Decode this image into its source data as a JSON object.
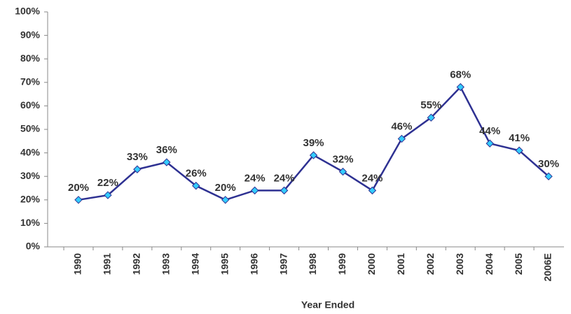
{
  "chart_data": {
    "type": "line",
    "x_label": "Year Ended",
    "categories": [
      "1990",
      "1991",
      "1992",
      "1993",
      "1994",
      "1995",
      "1996",
      "1997",
      "1998",
      "1999",
      "2000",
      "2001",
      "2002",
      "2003",
      "2004",
      "2005",
      "2006E"
    ],
    "series": [
      {
        "name": null,
        "color": "#2e3192",
        "marker_color": "#33ccff",
        "values": [
          20,
          22,
          33,
          36,
          26,
          20,
          24,
          24,
          39,
          32,
          24,
          46,
          55,
          68,
          44,
          41,
          30
        ],
        "value_labels": [
          "20%",
          "22%",
          "33%",
          "36%",
          "26%",
          "20%",
          "24%",
          "24%",
          "39%",
          "32%",
          "24%",
          "46%",
          "55%",
          "68%",
          "44%",
          "41%",
          "30%"
        ]
      }
    ],
    "ylim": [
      0,
      100
    ],
    "yticks": [
      {
        "value": 0,
        "label": "0%"
      },
      {
        "value": 10,
        "label": "10%"
      },
      {
        "value": 20,
        "label": "20%"
      },
      {
        "value": 30,
        "label": "30%"
      },
      {
        "value": 40,
        "label": "40%"
      },
      {
        "value": 50,
        "label": "50%"
      },
      {
        "value": 60,
        "label": "60%"
      },
      {
        "value": 70,
        "label": "70%"
      },
      {
        "value": 80,
        "label": "80%"
      },
      {
        "value": 90,
        "label": "90%"
      },
      {
        "value": 100,
        "label": "100%"
      }
    ]
  }
}
